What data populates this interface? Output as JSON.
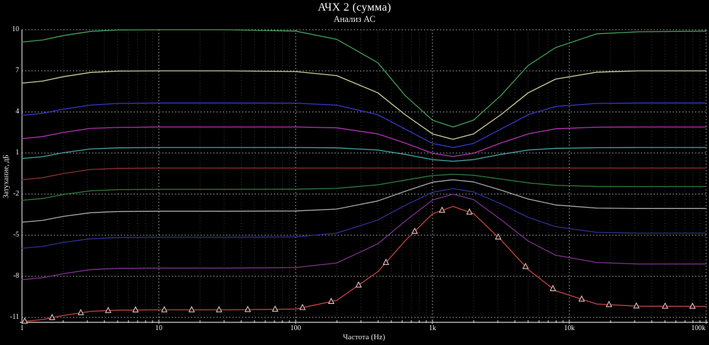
{
  "window": {
    "app_title": "АЧХ 2 (сумма)"
  },
  "colors": {
    "background": "#000000",
    "text": "#f0f0f0",
    "grid_major": "#c9c9c9",
    "grid_minor": "#bdbdbd",
    "axis": "#d6d6d6"
  },
  "chart_data": {
    "type": "line",
    "title": "АЧХ 2 (сумма)",
    "subtitle": "Анализ АС",
    "xlabel": "Частота (Hz)",
    "ylabel": "Затухание, дБ",
    "x_scale": "log",
    "x_range_hz": [
      1,
      100000
    ],
    "x_log_range": [
      0,
      5
    ],
    "x_ticks": [
      {
        "logf": 0,
        "label": "1"
      },
      {
        "logf": 1,
        "label": "10"
      },
      {
        "logf": 2,
        "label": "100"
      },
      {
        "logf": 3,
        "label": "1k"
      },
      {
        "logf": 4,
        "label": "10k"
      },
      {
        "logf": 5,
        "label": "100k"
      }
    ],
    "ylim": [
      -11.36,
      10
    ],
    "y_ticks": [
      10,
      7,
      4,
      1,
      -2,
      -5,
      -8,
      -11
    ],
    "grid": true,
    "legend": "none",
    "dip_center_hz": 1400,
    "sample_logf": [
      0,
      0.15,
      0.3,
      0.5,
      0.7,
      1,
      1.5,
      2,
      2.3,
      2.6,
      2.8,
      3,
      3.15,
      3.3,
      3.5,
      3.7,
      3.9,
      4.2,
      4.5,
      5
    ],
    "series": [
      {
        "name": "green-top",
        "color": "#42a058",
        "flat_db": 10,
        "extremum_db": 2.9,
        "values": [
          9.1,
          9.25,
          9.57,
          9.88,
          9.98,
          10,
          10,
          9.9,
          9.3,
          7.6,
          5.2,
          3.4,
          2.9,
          3.4,
          5.2,
          7.4,
          8.7,
          9.7,
          9.85,
          9.9
        ]
      },
      {
        "name": "pale-yellow",
        "color": "#cdcd9c",
        "flat_db": 7,
        "extremum_db": 2.0,
        "values": [
          6.1,
          6.25,
          6.57,
          6.88,
          6.98,
          7,
          7,
          6.95,
          6.65,
          5.4,
          3.8,
          2.4,
          2.0,
          2.4,
          3.8,
          5.4,
          6.4,
          6.9,
          7,
          7
        ]
      },
      {
        "name": "blue-bright",
        "color": "#3838c8",
        "flat_db": 4.65,
        "extremum_db": 1.4,
        "values": [
          3.75,
          3.9,
          4.2,
          4.5,
          4.62,
          4.65,
          4.65,
          4.64,
          4.5,
          3.8,
          2.75,
          1.7,
          1.4,
          1.7,
          2.75,
          3.8,
          4.4,
          4.62,
          4.65,
          4.65
        ]
      },
      {
        "name": "magenta",
        "color": "#b232b2",
        "flat_db": 2.9,
        "extremum_db": 0.75,
        "values": [
          2.05,
          2.2,
          2.5,
          2.8,
          2.87,
          2.9,
          2.9,
          2.9,
          2.84,
          2.4,
          1.73,
          0.98,
          0.75,
          0.98,
          1.73,
          2.4,
          2.77,
          2.89,
          2.9,
          2.9
        ]
      },
      {
        "name": "cyan",
        "color": "#46a4a4",
        "flat_db": 1.4,
        "extremum_db": 0.4,
        "values": [
          0.6,
          0.73,
          1.02,
          1.3,
          1.38,
          1.4,
          1.4,
          1.4,
          1.38,
          1.22,
          0.9,
          0.52,
          0.4,
          0.52,
          0.9,
          1.22,
          1.34,
          1.39,
          1.4,
          1.4
        ]
      },
      {
        "name": "dark-red-flat",
        "color": "#8c3030",
        "flat_db": -0.1,
        "extremum_db": -0.1,
        "values": [
          -0.95,
          -0.8,
          -0.5,
          -0.2,
          -0.12,
          -0.1,
          -0.1,
          -0.1,
          -0.1,
          -0.1,
          -0.1,
          -0.1,
          -0.1,
          -0.1,
          -0.1,
          -0.1,
          -0.1,
          -0.1,
          -0.1,
          -0.1
        ]
      },
      {
        "name": "green-dim",
        "color": "#2f7d3c",
        "flat_db": -1.6,
        "extremum_db": -0.55,
        "values": [
          -2.45,
          -2.32,
          -2.03,
          -1.76,
          -1.67,
          -1.65,
          -1.65,
          -1.64,
          -1.58,
          -1.32,
          -0.98,
          -0.64,
          -0.55,
          -0.62,
          -0.9,
          -1.18,
          -1.36,
          -1.44,
          -1.45,
          -1.45
        ]
      },
      {
        "name": "gray-white",
        "color": "#a9a9a9",
        "flat_db": -3.2,
        "extremum_db": -0.95,
        "values": [
          -4.05,
          -3.92,
          -3.63,
          -3.36,
          -3.27,
          -3.25,
          -3.25,
          -3.23,
          -3.09,
          -2.5,
          -1.79,
          -1.13,
          -0.95,
          -1.11,
          -1.71,
          -2.36,
          -2.79,
          -3.02,
          -3.05,
          -3.05
        ]
      },
      {
        "name": "blue-dark",
        "color": "#30308f",
        "flat_db": -5.0,
        "extremum_db": -1.6,
        "values": [
          -5.95,
          -5.82,
          -5.53,
          -5.26,
          -5.17,
          -5.15,
          -5.15,
          -5.12,
          -4.85,
          -3.89,
          -2.82,
          -1.86,
          -1.6,
          -1.84,
          -2.71,
          -3.7,
          -4.38,
          -4.79,
          -4.85,
          -4.85
        ]
      },
      {
        "name": "purple",
        "color": "#7c3390",
        "flat_db": -7.3,
        "extremum_db": -2.0,
        "values": [
          -8.25,
          -8.11,
          -7.81,
          -7.51,
          -7.42,
          -7.4,
          -7.4,
          -7.36,
          -7.03,
          -5.63,
          -3.97,
          -2.43,
          -2.0,
          -2.4,
          -3.86,
          -5.43,
          -6.46,
          -6.99,
          -7.1,
          -7.1
        ]
      },
      {
        "name": "red-marked",
        "color": "#c24444",
        "flat_db": -10.35,
        "extremum_db": -2.9,
        "marker": "triangle-up",
        "marker_logf": [
          0.02,
          0.22,
          0.43,
          0.63,
          0.83,
          1.04,
          1.24,
          1.44,
          1.65,
          1.85,
          2.05,
          2.26,
          2.46,
          2.66,
          2.87,
          3.07,
          3.27,
          3.48,
          3.68,
          3.88,
          4.09,
          4.29,
          4.49,
          4.7,
          4.9
        ],
        "values": [
          -11.3,
          -11.16,
          -10.86,
          -10.56,
          -10.47,
          -10.45,
          -10.45,
          -10.39,
          -9.76,
          -7.67,
          -5.41,
          -3.44,
          -2.9,
          -3.42,
          -5.33,
          -7.51,
          -9.06,
          -10.02,
          -10.18,
          -10.2
        ]
      }
    ]
  }
}
